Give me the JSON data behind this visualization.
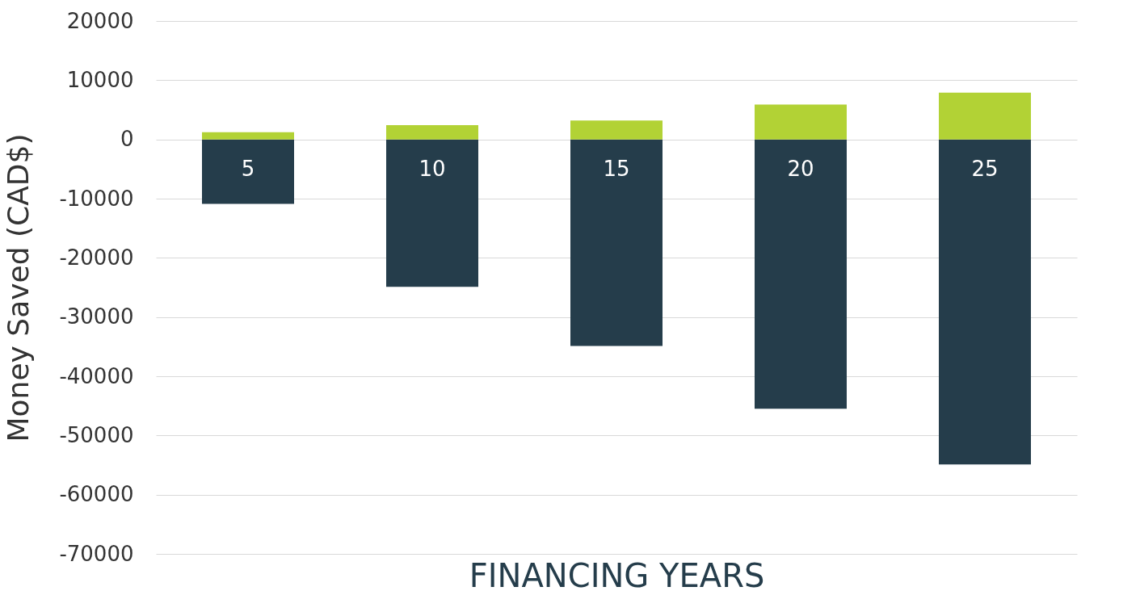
{
  "chart_data": {
    "type": "bar",
    "xlabel": "FINANCING YEARS",
    "ylabel": "Money Saved (CAD$)",
    "stacked": true,
    "categories": [
      "5",
      "10",
      "15",
      "20",
      "25"
    ],
    "series": [
      {
        "color": "#253d4b",
        "values": [
          -10900,
          -24900,
          -34900,
          -45500,
          -54900
        ]
      },
      {
        "color": "#b2d235",
        "values": [
          1200,
          2400,
          3200,
          5900,
          7900
        ]
      }
    ],
    "ylim": [
      -70000,
      20000
    ],
    "yticks": [
      -70000,
      -60000,
      -50000,
      -40000,
      -30000,
      -20000,
      -10000,
      0,
      10000,
      20000
    ],
    "grid": "y"
  }
}
